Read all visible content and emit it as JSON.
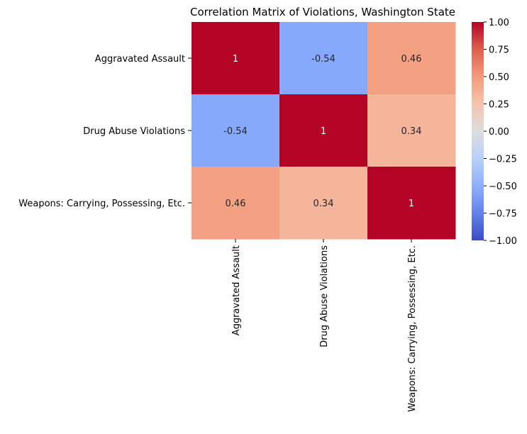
{
  "chart_data": {
    "type": "heatmap",
    "title": "Correlation Matrix of Violations, Washington State",
    "xlabel": "",
    "ylabel": "",
    "x_categories": [
      "Aggravated Assault",
      "Drug Abuse Violations",
      "Weapons: Carrying, Possessing, Etc."
    ],
    "y_categories": [
      "Aggravated Assault",
      "Drug Abuse Violations",
      "Weapons: Carrying, Possessing, Etc."
    ],
    "values": [
      [
        1,
        -0.54,
        0.46
      ],
      [
        -0.54,
        1,
        0.34
      ],
      [
        0.46,
        0.34,
        1
      ]
    ],
    "annotations": [
      [
        "1",
        "-0.54",
        "0.46"
      ],
      [
        "-0.54",
        "1",
        "0.34"
      ],
      [
        "0.46",
        "0.34",
        "1"
      ]
    ],
    "colormap": "coolwarm",
    "colorbar": {
      "range": [
        -1.0,
        1.0
      ],
      "ticks": [
        1.0,
        0.75,
        0.5,
        0.25,
        0.0,
        -0.25,
        -0.5,
        -0.75,
        -1.0
      ],
      "tick_labels": [
        "1.00",
        "0.75",
        "0.50",
        "0.25",
        "0.00",
        "−0.25",
        "−0.50",
        "−0.75",
        "−1.00"
      ],
      "placement": "right"
    },
    "grid": false,
    "legend": "none"
  }
}
